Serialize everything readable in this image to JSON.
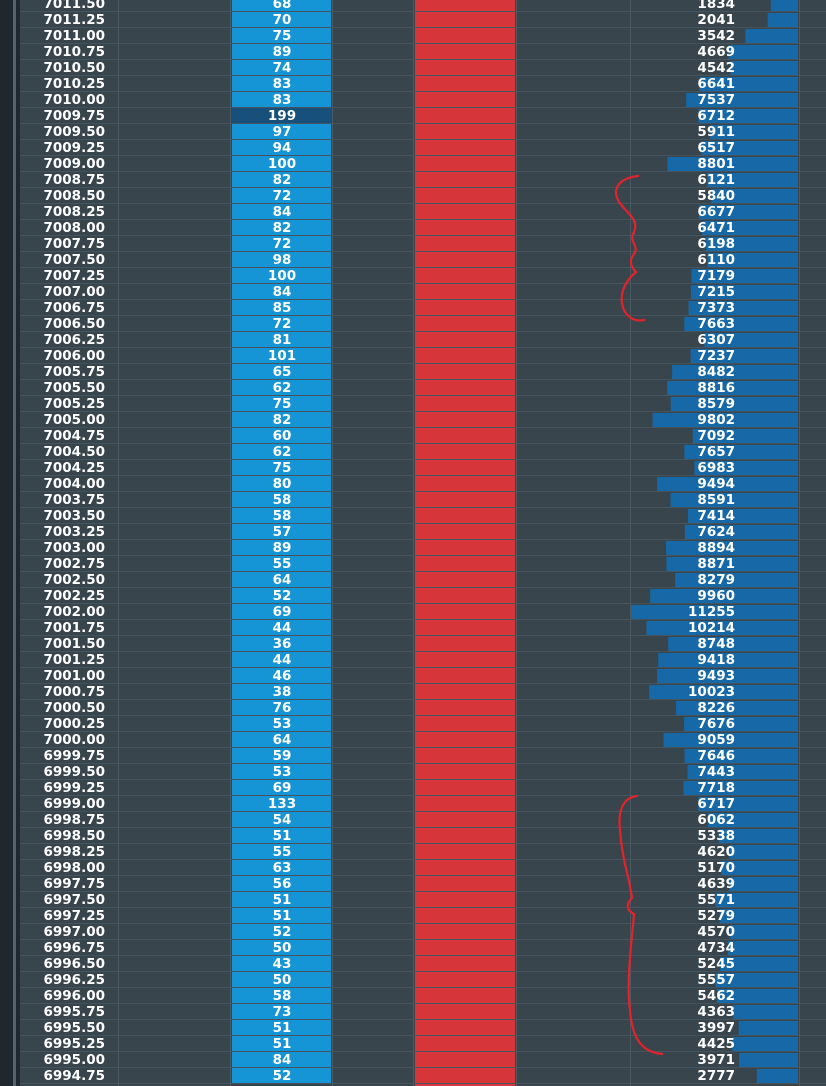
{
  "rows": [
    [
      "7011.50",
      68,
      1834
    ],
    [
      "7011.25",
      70,
      2041
    ],
    [
      "7011.00",
      75,
      3542
    ],
    [
      "7010.75",
      89,
      4669
    ],
    [
      "7010.50",
      74,
      4542
    ],
    [
      "7010.25",
      83,
      6641
    ],
    [
      "7010.00",
      83,
      7537
    ],
    [
      "7009.75",
      199,
      6712
    ],
    [
      "7009.50",
      97,
      5911
    ],
    [
      "7009.25",
      94,
      6517
    ],
    [
      "7009.00",
      100,
      8801
    ],
    [
      "7008.75",
      82,
      6121
    ],
    [
      "7008.50",
      72,
      5840
    ],
    [
      "7008.25",
      84,
      6677
    ],
    [
      "7008.00",
      82,
      6471
    ],
    [
      "7007.75",
      72,
      6198
    ],
    [
      "7007.50",
      98,
      6110
    ],
    [
      "7007.25",
      100,
      7179
    ],
    [
      "7007.00",
      84,
      7215
    ],
    [
      "7006.75",
      85,
      7373
    ],
    [
      "7006.50",
      72,
      7663
    ],
    [
      "7006.25",
      81,
      6307
    ],
    [
      "7006.00",
      101,
      7237
    ],
    [
      "7005.75",
      65,
      8482
    ],
    [
      "7005.50",
      62,
      8816
    ],
    [
      "7005.25",
      75,
      8579
    ],
    [
      "7005.00",
      82,
      9802
    ],
    [
      "7004.75",
      60,
      7092
    ],
    [
      "7004.50",
      62,
      7657
    ],
    [
      "7004.25",
      75,
      6983
    ],
    [
      "7004.00",
      80,
      9494
    ],
    [
      "7003.75",
      58,
      8591
    ],
    [
      "7003.50",
      58,
      7414
    ],
    [
      "7003.25",
      57,
      7624
    ],
    [
      "7003.00",
      89,
      8894
    ],
    [
      "7002.75",
      55,
      8871
    ],
    [
      "7002.50",
      64,
      8279
    ],
    [
      "7002.25",
      52,
      9960
    ],
    [
      "7002.00",
      69,
      11255
    ],
    [
      "7001.75",
      44,
      10214
    ],
    [
      "7001.50",
      36,
      8748
    ],
    [
      "7001.25",
      44,
      9418
    ],
    [
      "7001.00",
      46,
      9493
    ],
    [
      "7000.75",
      38,
      10023
    ],
    [
      "7000.50",
      76,
      8226
    ],
    [
      "7000.25",
      53,
      7676
    ],
    [
      "7000.00",
      64,
      9059
    ],
    [
      "6999.75",
      59,
      7646
    ],
    [
      "6999.50",
      53,
      7443
    ],
    [
      "6999.25",
      69,
      7718
    ],
    [
      "6999.00",
      133,
      6717
    ],
    [
      "6998.75",
      54,
      6062
    ],
    [
      "6998.50",
      51,
      5338
    ],
    [
      "6998.25",
      55,
      4620
    ],
    [
      "6998.00",
      63,
      5170
    ],
    [
      "6997.75",
      56,
      4639
    ],
    [
      "6997.50",
      51,
      5571
    ],
    [
      "6997.25",
      51,
      5279
    ],
    [
      "6997.00",
      52,
      4570
    ],
    [
      "6996.75",
      50,
      4734
    ],
    [
      "6996.50",
      43,
      5245
    ],
    [
      "6996.25",
      50,
      5557
    ],
    [
      "6996.00",
      58,
      5462
    ],
    [
      "6995.75",
      73,
      4363
    ],
    [
      "6995.50",
      51,
      3997
    ],
    [
      "6995.25",
      51,
      4425
    ],
    [
      "6995.00",
      84,
      3971
    ],
    [
      "6994.75",
      52,
      2777
    ]
  ]
}
